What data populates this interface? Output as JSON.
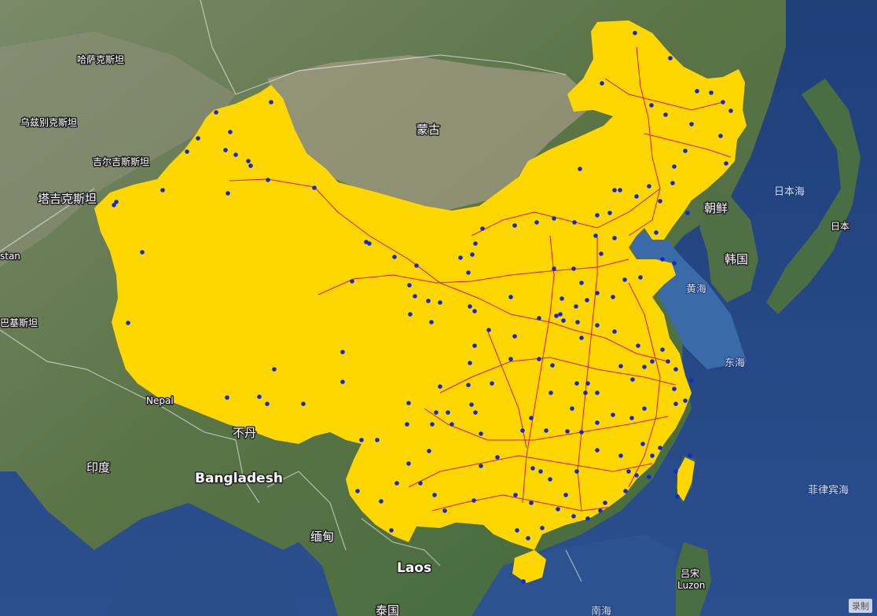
{
  "map": {
    "labels": {
      "kazakhstan": "哈萨克斯坦",
      "uzbekistan": "乌兹别克斯坦",
      "kyrgyzstan": "吉尔吉斯斯坦",
      "tajikistan": "塔吉克斯坦",
      "pakistan_fragment": "stan",
      "afghanistan_fragment": "巴基斯坦",
      "mongolia": "蒙古",
      "north_korea": "朝鲜",
      "south_korea": "韩国",
      "japan": "日本",
      "sea_of_japan": "日本海",
      "yellow_sea": "黄海",
      "east_china_sea": "东海",
      "philippine_sea": "菲律宾海",
      "nepal": "Nepal",
      "bhutan": "不丹",
      "india": "印度",
      "bangladesh": "Bangladesh",
      "myanmar": "缅甸",
      "laos": "Laos",
      "thailand": "泰国",
      "south_china_sea": "南海",
      "luzon_cn": "吕宋",
      "luzon_en": "Luzon"
    },
    "attribution": "录制",
    "colors": {
      "highlight_fill": "#FFD700",
      "railway": "#E8112D",
      "city_point": "#1428D8",
      "ocean": "#25457F",
      "land": "#56704A"
    }
  }
}
